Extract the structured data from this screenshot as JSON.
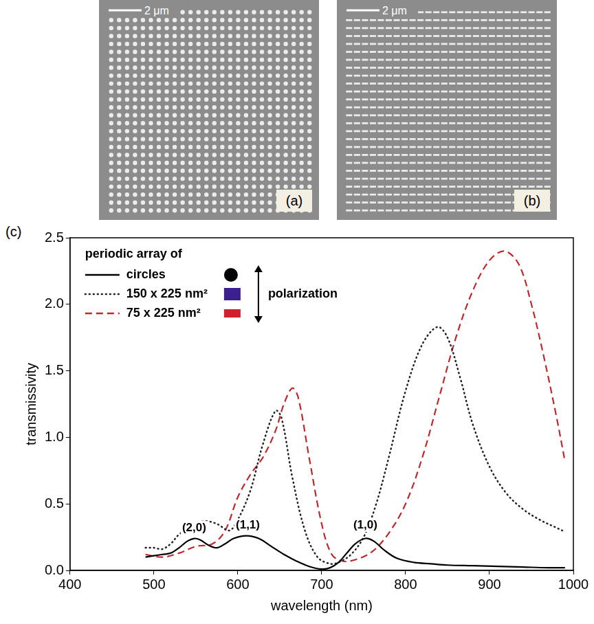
{
  "images": [
    {
      "panel": "(a)",
      "scale_bar": "2 μm"
    },
    {
      "panel": "(b)",
      "scale_bar": "2 μm"
    }
  ],
  "chart_data": {
    "type": "line",
    "panel": "(c)",
    "x_label": "wavelength (nm)",
    "y_label": "transmissivity",
    "xlim": [
      400,
      1000
    ],
    "xticks": [
      400,
      500,
      600,
      700,
      800,
      900,
      1000
    ],
    "ylim": [
      0,
      2.5
    ],
    "yticks": [
      {
        "value": 0,
        "label": "0.0"
      },
      0.5,
      {
        "value": 1,
        "label": "1.0"
      },
      1.5,
      {
        "value": 2,
        "label": "2.0"
      },
      2.5
    ],
    "grid": false,
    "legend": "upper left",
    "legend_title": "periodic array of",
    "legend_note": "polarization",
    "series": [
      {
        "name": "circles",
        "color": "#000000",
        "line_style": "solid",
        "x": [
          490,
          500,
          510,
          520,
          530,
          540,
          548,
          555,
          565,
          575,
          585,
          595,
          610,
          625,
          640,
          655,
          670,
          685,
          700,
          710,
          720,
          730,
          740,
          752,
          762,
          775,
          790,
          810,
          830,
          850,
          880,
          910,
          940,
          970,
          990
        ],
        "values": [
          0.1,
          0.11,
          0.12,
          0.13,
          0.17,
          0.22,
          0.24,
          0.23,
          0.19,
          0.17,
          0.2,
          0.24,
          0.26,
          0.24,
          0.18,
          0.12,
          0.07,
          0.03,
          0.01,
          0.02,
          0.06,
          0.13,
          0.2,
          0.24,
          0.22,
          0.15,
          0.09,
          0.06,
          0.05,
          0.04,
          0.035,
          0.03,
          0.025,
          0.02,
          0.02
        ]
      },
      {
        "name": "150 x 225 nm²",
        "color": "#222222",
        "line_style": "dotted",
        "x": [
          490,
          500,
          510,
          520,
          530,
          545,
          560,
          575,
          590,
          600,
          615,
          630,
          645,
          652,
          665,
          680,
          695,
          710,
          720,
          735,
          750,
          765,
          780,
          800,
          820,
          838,
          850,
          865,
          880,
          900,
          920,
          940,
          960,
          980,
          990
        ],
        "values": [
          0.17,
          0.17,
          0.16,
          0.2,
          0.27,
          0.33,
          0.37,
          0.35,
          0.3,
          0.38,
          0.6,
          0.95,
          1.2,
          1.15,
          0.7,
          0.3,
          0.1,
          0.05,
          0.06,
          0.12,
          0.25,
          0.5,
          0.85,
          1.35,
          1.7,
          1.83,
          1.75,
          1.45,
          1.1,
          0.78,
          0.58,
          0.46,
          0.38,
          0.32,
          0.29
        ]
      },
      {
        "name": "75 x 225 nm²",
        "color": "#c0282d",
        "line_style": "dashed",
        "x": [
          490,
          510,
          530,
          550,
          570,
          585,
          600,
          615,
          630,
          645,
          655,
          665,
          672,
          685,
          700,
          712,
          725,
          740,
          760,
          780,
          800,
          820,
          840,
          860,
          880,
          900,
          918,
          935,
          950,
          965,
          980,
          990
        ],
        "values": [
          0.12,
          0.1,
          0.13,
          0.18,
          0.2,
          0.3,
          0.55,
          0.72,
          0.85,
          1.05,
          1.25,
          1.37,
          1.3,
          0.85,
          0.35,
          0.12,
          0.07,
          0.08,
          0.14,
          0.28,
          0.5,
          0.85,
          1.3,
          1.75,
          2.1,
          2.33,
          2.4,
          2.3,
          2.0,
          1.6,
          1.15,
          0.82
        ]
      }
    ],
    "annotations": [
      {
        "text": "(2,0)",
        "x": 548,
        "y": 0.32
      },
      {
        "text": "(1,1)",
        "x": 612,
        "y": 0.34
      },
      {
        "text": "(1,0)",
        "x": 752,
        "y": 0.34
      }
    ]
  }
}
